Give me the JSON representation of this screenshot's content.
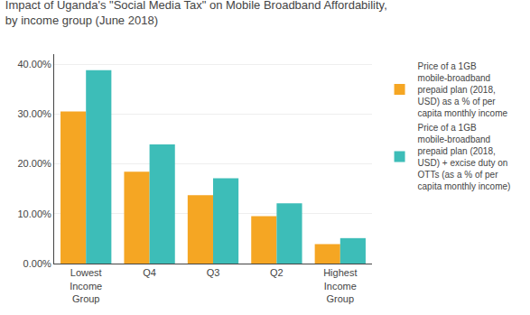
{
  "chart_data": {
    "type": "bar",
    "title": "Impact of Uganda's \"Social Media Tax\" on Mobile Broadband Affordability,\nby income group (June 2018)",
    "categories": [
      "Lowest\nIncome\nGroup",
      "Q4",
      "Q3",
      "Q2",
      "Highest\nIncome\nGroup"
    ],
    "series": [
      {
        "name": "Price of a 1GB\nmobile-broadband\nprepaid plan (2018,\nUSD) as a % of per\ncapita monthly income",
        "color": "#F5A623",
        "values": [
          0.305,
          0.184,
          0.137,
          0.095,
          0.039
        ]
      },
      {
        "name": "Price of a 1GB\nmobile-broadband\nprepaid plan (2018,\nUSD) + excise duty on\nOTTs (as a % of per\ncapita monthly income)",
        "color": "#3DBDB8",
        "values": [
          0.388,
          0.239,
          0.171,
          0.121,
          0.051
        ]
      }
    ],
    "ylim": [
      0,
      0.42
    ],
    "yticks": [
      {
        "value": 0.0,
        "label": "0.00%"
      },
      {
        "value": 0.1,
        "label": "10.00%"
      },
      {
        "value": 0.2,
        "label": "20.00%"
      },
      {
        "value": 0.3,
        "label": "30.00%"
      },
      {
        "value": 0.4,
        "label": "40.00%"
      }
    ],
    "grid": true,
    "legend": "right"
  }
}
